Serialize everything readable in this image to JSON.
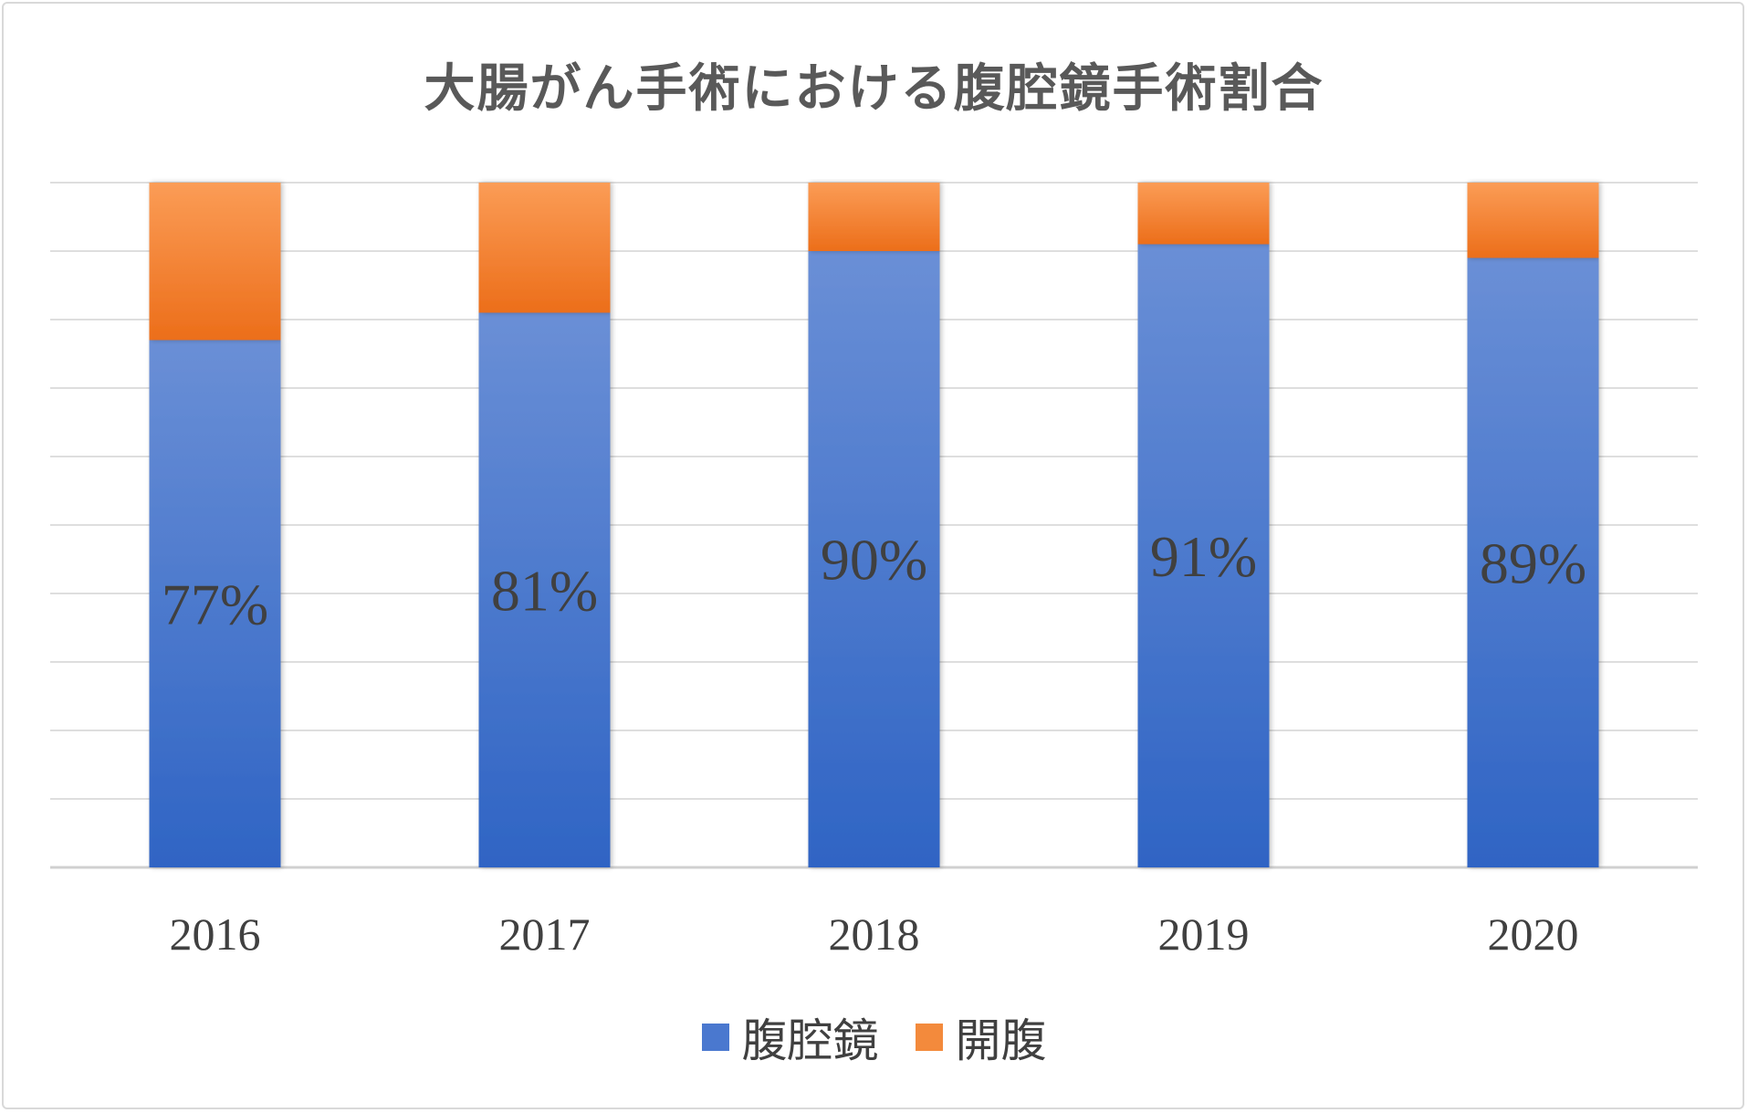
{
  "chart_data": {
    "type": "bar",
    "stacked": true,
    "title": "大腸がん手術における腹腔鏡手術割合",
    "categories": [
      "2016",
      "2017",
      "2018",
      "2019",
      "2020"
    ],
    "series": [
      {
        "name": "腹腔鏡",
        "values": [
          77,
          81,
          90,
          91,
          89
        ],
        "labels": [
          "77%",
          "81%",
          "90%",
          "91%",
          "89%"
        ],
        "color": "#4472c4"
      },
      {
        "name": "開腹",
        "values": [
          23,
          19,
          10,
          9,
          11
        ],
        "color": "#ed7d31"
      }
    ],
    "ylim": [
      0,
      100
    ],
    "grid": true,
    "legend": "bottom"
  }
}
